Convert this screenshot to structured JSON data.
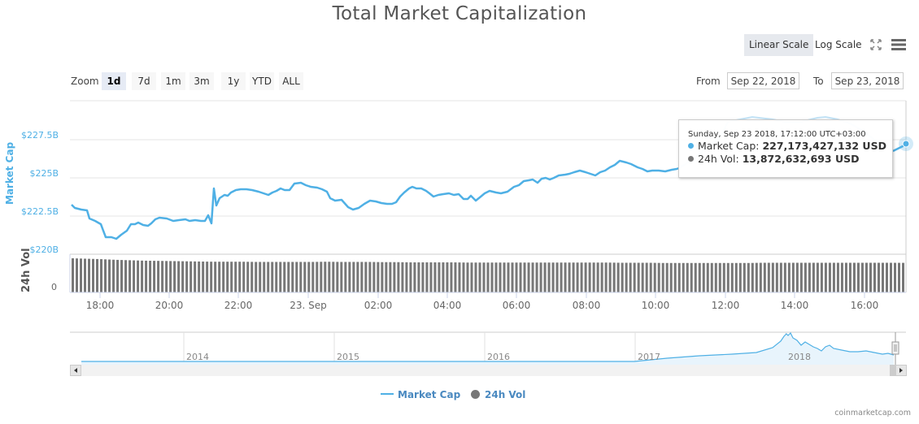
{
  "header": {
    "title": "Total Market Capitalization",
    "scale_buttons": [
      {
        "label": "Linear Scale",
        "active": true
      },
      {
        "label": "Log Scale",
        "active": false
      }
    ],
    "icons": {
      "fullscreen": "fullscreen-icon",
      "menu": "hamburger-menu-icon"
    }
  },
  "range_selector": {
    "zoom_label": "Zoom",
    "buttons": [
      {
        "label": "1d",
        "active": true
      },
      {
        "label": "7d",
        "active": false
      },
      {
        "label": "1m",
        "active": false
      },
      {
        "label": "3m",
        "active": false
      },
      {
        "label": "1y",
        "active": false
      },
      {
        "label": "YTD",
        "active": false
      },
      {
        "label": "ALL",
        "active": false
      }
    ],
    "from_label": "From",
    "from_value": "Sep 22, 2018",
    "to_label": "To",
    "to_value": "Sep 23, 2018"
  },
  "tooltip": {
    "date": "Sunday, Sep 23 2018, 17:12:00 UTC+03:00",
    "market_cap_label": "Market Cap:",
    "market_cap_value": "227,173,427,132 USD",
    "volume_label": "24h Vol:",
    "volume_value": "13,872,632,693 USD"
  },
  "legend": {
    "market_cap": "Market Cap",
    "volume": "24h Vol"
  },
  "navigator": {
    "year_labels": [
      "2014",
      "2015",
      "2016",
      "2017",
      "2018"
    ]
  },
  "credits": "coinmarketcap.com",
  "colors": {
    "market_cap": "#4fb0e5",
    "volume": "#777777",
    "legend_text": "#4a89c0",
    "grid": "#e6e6e6"
  },
  "chart_data": {
    "type": "line",
    "title": "Total Market Capitalization",
    "xlabel": "",
    "ylabel": "Market Cap",
    "secondary_ylabel": "24h Vol",
    "ylim": [
      220000000000,
      228500000000
    ],
    "y_ticks": [
      "$220B",
      "$222.5B",
      "$225B",
      "$227.5B"
    ],
    "volume_ticks": [
      "0"
    ],
    "x_ticks": [
      "18:00",
      "20:00",
      "22:00",
      "23. Sep",
      "02:00",
      "04:00",
      "06:00",
      "08:00",
      "10:00",
      "12:00",
      "14:00",
      "16:00"
    ],
    "grid": true,
    "legend_position": "bottom",
    "x": [
      "17:15",
      "17:30",
      "17:45",
      "18:00",
      "18:15",
      "18:30",
      "18:45",
      "19:00",
      "19:15",
      "19:30",
      "19:45",
      "20:00",
      "20:15",
      "20:30",
      "20:45",
      "21:00",
      "21:15",
      "21:20",
      "21:30",
      "21:45",
      "22:00",
      "22:30",
      "23:00",
      "23:30",
      "00:00",
      "00:30",
      "01:00",
      "01:30",
      "02:00",
      "02:30",
      "03:00",
      "03:30",
      "04:00",
      "04:30",
      "05:00",
      "05:30",
      "06:00",
      "06:30",
      "07:00",
      "07:30",
      "08:00",
      "08:30",
      "09:00",
      "09:30",
      "10:00",
      "10:30",
      "11:00",
      "11:30",
      "12:00",
      "12:30",
      "13:00",
      "13:30",
      "14:00",
      "14:30",
      "15:00",
      "15:30",
      "16:00",
      "16:30",
      "17:00",
      "17:12"
    ],
    "series": [
      {
        "name": "Market Cap",
        "unit": "USD (billions)",
        "values": [
          222.9,
          222.8,
          222.7,
          222.1,
          221.2,
          221.2,
          221.6,
          222.0,
          221.9,
          222.3,
          222.2,
          222.2,
          222.2,
          222.1,
          222.2,
          222.1,
          224.6,
          223.5,
          224.3,
          224.4,
          224.4,
          224.1,
          224.5,
          224.7,
          224.4,
          223.5,
          223.2,
          223.4,
          223.5,
          224.3,
          224.0,
          223.8,
          223.6,
          223.9,
          224.0,
          224.2,
          224.7,
          224.9,
          225.0,
          225.1,
          225.5,
          225.7,
          226.0,
          225.6,
          225.7,
          226.1,
          226.0,
          226.3,
          226.5,
          228.5,
          228.3,
          228.2,
          228.3,
          228.4,
          227.8,
          227.5,
          227.3,
          227.2,
          227.0,
          227.17
        ]
      },
      {
        "name": "24h Vol",
        "unit": "USD (billions)",
        "values": [
          16.0,
          15.8,
          15.6,
          15.3,
          15.1,
          14.9,
          14.8,
          14.7,
          14.6,
          14.5,
          14.4,
          14.4,
          14.4,
          14.3,
          14.3,
          14.3,
          14.3,
          14.3,
          14.4,
          14.3,
          14.3,
          14.3,
          14.2,
          14.2,
          14.1,
          14.1,
          14.1,
          14.1,
          14.0,
          14.0,
          14.0,
          14.0,
          14.0,
          14.0,
          14.0,
          14.0,
          14.0,
          14.0,
          14.0,
          13.9,
          13.9,
          13.9,
          13.8,
          13.8,
          13.8,
          13.8,
          13.8,
          13.8,
          13.8,
          13.9,
          13.9,
          13.9,
          13.9,
          13.9,
          13.9,
          13.9,
          13.9,
          13.9,
          13.9,
          13.87
        ]
      }
    ]
  }
}
